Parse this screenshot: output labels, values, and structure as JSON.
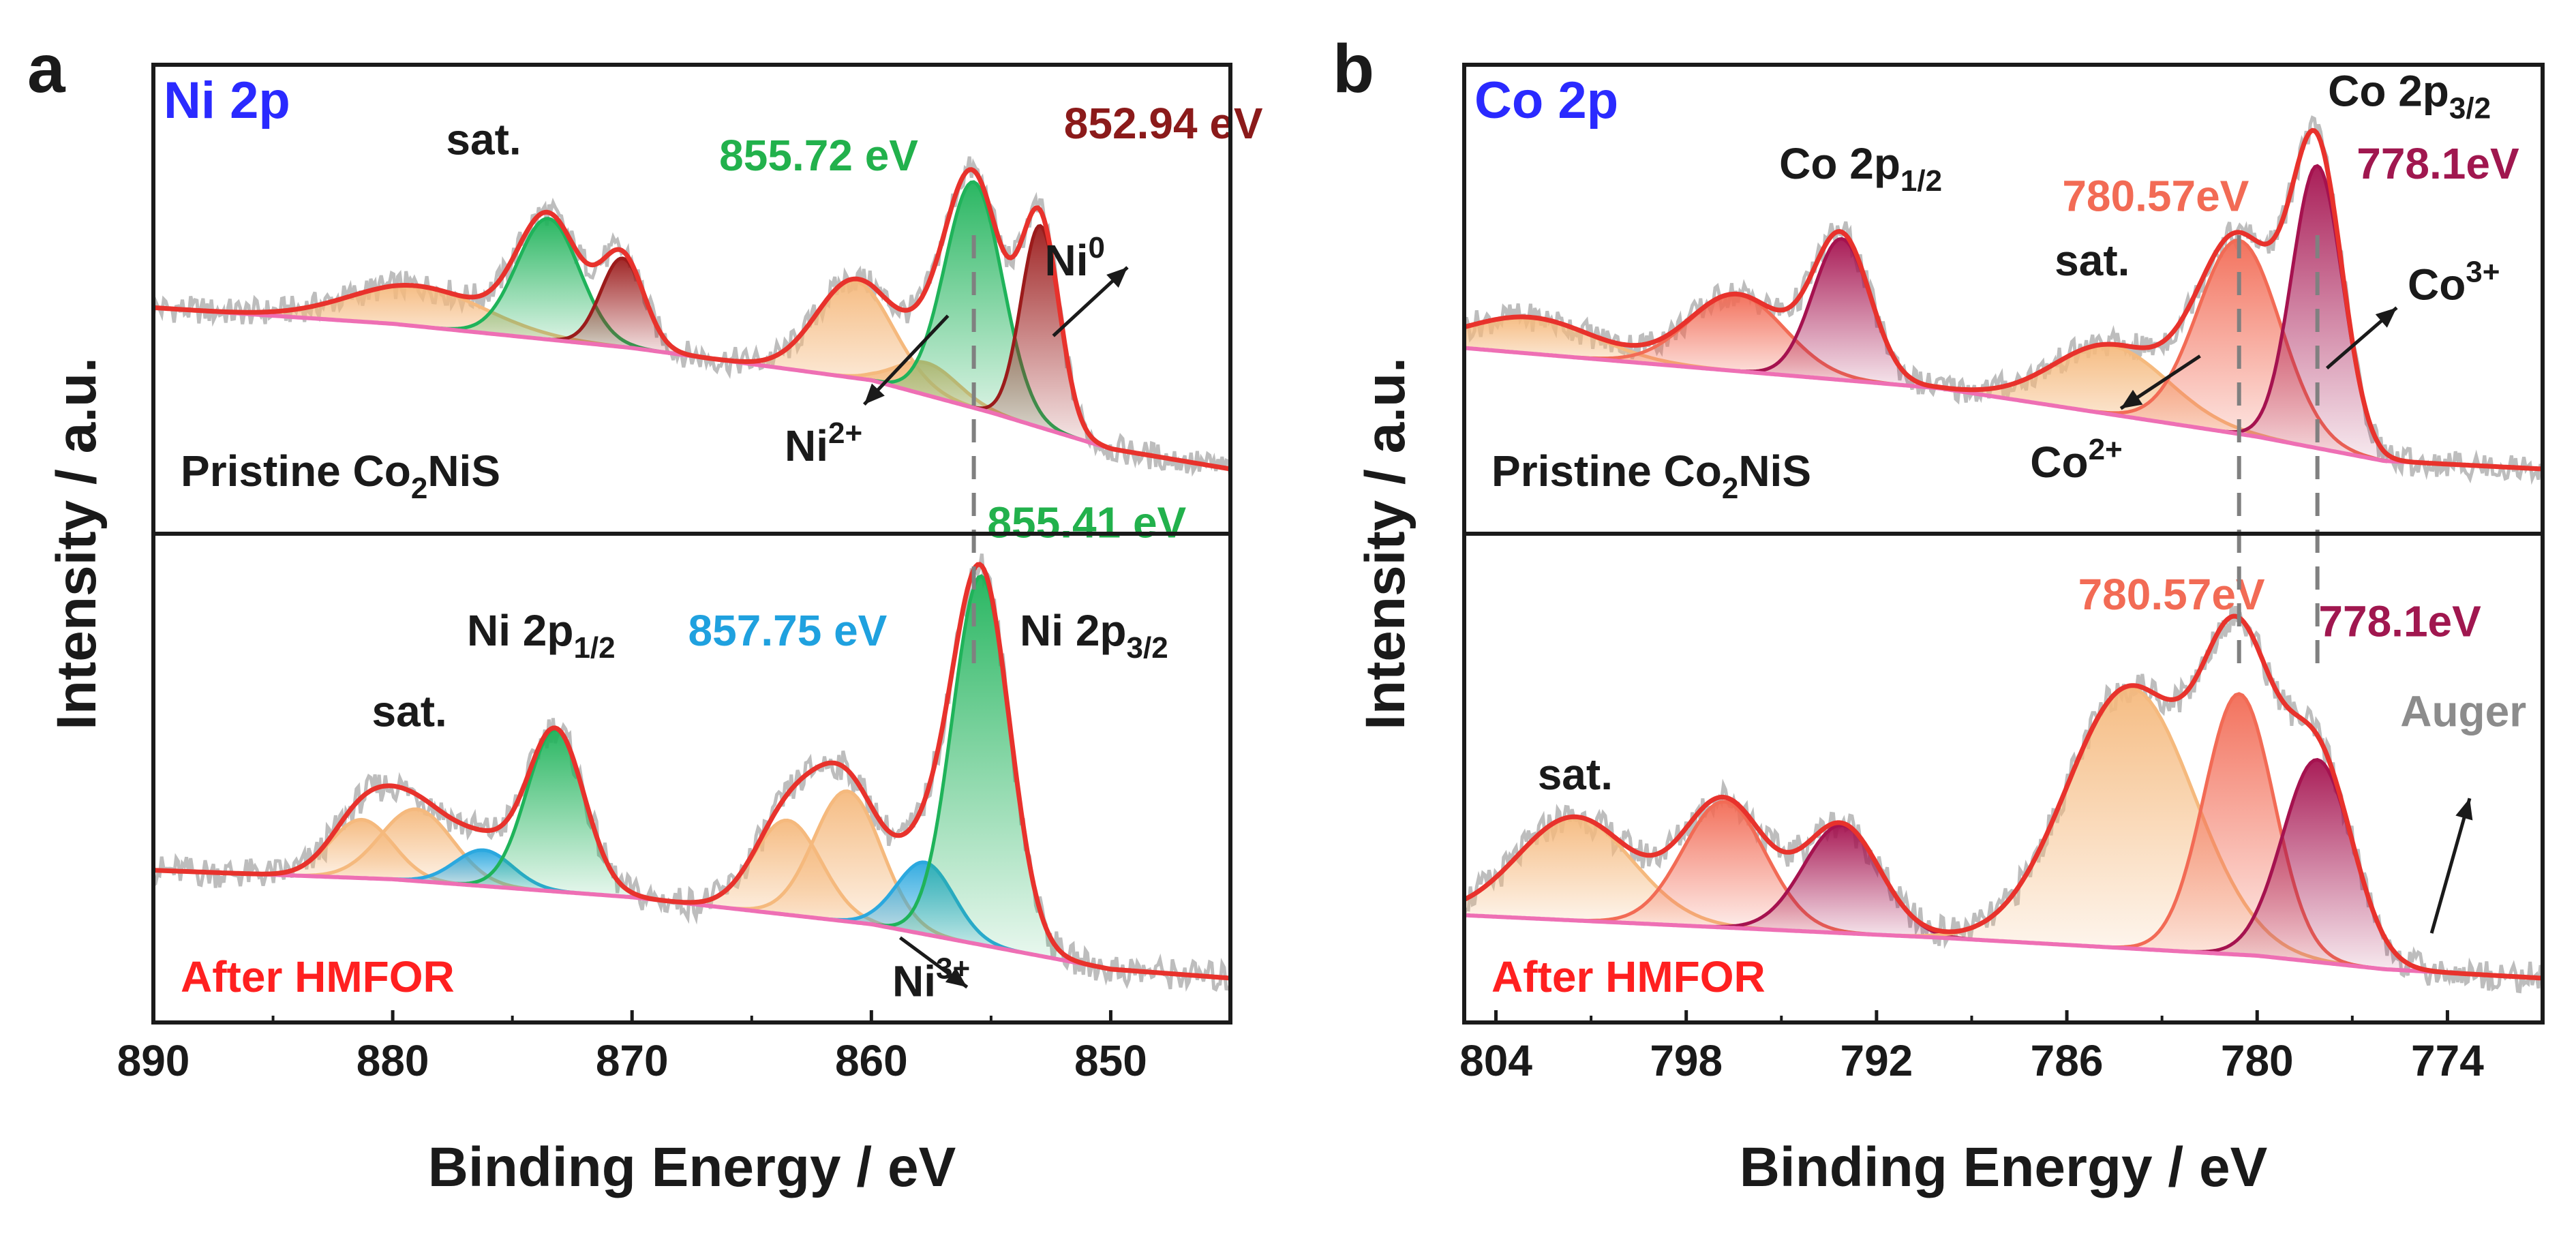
{
  "colors": {
    "raw": "#bdbdbd",
    "envelope": "#e8322c",
    "background": "#ee6fb4",
    "green": "#1fb35a",
    "darkred": "#9b1b1b",
    "blue": "#2ba8df",
    "light_orange": "#f5b97d",
    "salmon": "#f26b55",
    "crimson": "#a5124f",
    "gray_text": "#8c8c8c",
    "green_text": "#22b14c",
    "blue_text": "#1fa1df",
    "darkred_text": "#8b1a1a",
    "salmon_text": "#f26b55",
    "crimson_text": "#a0174f",
    "title_blue": "#2a2aff",
    "red_text": "#ff2020"
  },
  "chart_data": [
    {
      "type": "line",
      "panel_label": "a",
      "title": "Ni 2p",
      "xlabel": "Binding Energy / eV",
      "ylabel": "Intensity / a.u.",
      "xlim": [
        890,
        845
      ],
      "xticks": [
        890,
        880,
        870,
        860,
        850
      ],
      "xtick_labels": [
        "890",
        "880",
        "870",
        "860",
        "850"
      ],
      "subplots": [
        {
          "name": "Pristine Co2NiS",
          "label_main": "Pristine Co",
          "label_sub": "2",
          "label_tail": "NiS",
          "background": {
            "x": [
              890,
              880,
              870,
              860,
              855,
              850,
              845
            ],
            "y": [
              0.4,
              0.36,
              0.3,
              0.22,
              0.14,
              0.05,
              0.0
            ]
          },
          "peaks": [
            {
              "name": "sat.",
              "center": 879.0,
              "height": 0.1,
              "width": 2.8,
              "color": "light_orange"
            },
            {
              "name": "Ni2+ 2p1/2",
              "center": 873.5,
              "height": 0.3,
              "width": 1.3,
              "color": "green"
            },
            {
              "name": "Ni0 2p1/2",
              "center": 870.4,
              "height": 0.22,
              "width": 0.9,
              "color": "darkred"
            },
            {
              "name": "sat.",
              "center": 860.7,
              "height": 0.24,
              "width": 1.6,
              "color": "light_orange"
            },
            {
              "name": "Ni2+ sat",
              "center": 857.7,
              "height": 0.08,
              "width": 1.3,
              "color": "light_orange"
            },
            {
              "name": "Ni2+ 2p3/2",
              "center": 855.72,
              "height": 0.56,
              "width": 1.2,
              "color": "green"
            },
            {
              "name": "Ni0 2p3/2",
              "center": 852.94,
              "height": 0.5,
              "width": 0.8,
              "color": "darkred"
            }
          ],
          "annotations": [
            {
              "text": "sat.",
              "x": 876.2,
              "y": 0.78,
              "color": "#1a1a1a"
            },
            {
              "text": "855.72 eV",
              "x": 862.2,
              "y": 0.74,
              "color": "green_text"
            },
            {
              "text": "852.94 eV",
              "x": 847.8,
              "y": 0.82,
              "color": "darkred_text"
            },
            {
              "text": "Ni",
              "sup": "0",
              "x": 851.5,
              "y": 0.48,
              "color": "#1a1a1a"
            },
            {
              "text": "Ni",
              "sup": "2+",
              "x": 862.0,
              "y": 0.02,
              "color": "#1a1a1a"
            }
          ],
          "arrows": [
            {
              "x1": 852.4,
              "y1": 0.33,
              "x2": 849.3,
              "y2": 0.5
            },
            {
              "x1": 856.8,
              "y1": 0.38,
              "x2": 860.3,
              "y2": 0.16
            }
          ]
        },
        {
          "name": "After HMFOR",
          "label_main": "After HMFOR",
          "background": {
            "x": [
              890,
              880,
              870,
              860,
              855,
              850,
              845
            ],
            "y": [
              0.24,
              0.22,
              0.18,
              0.12,
              0.07,
              0.02,
              0.0
            ]
          },
          "peaks": [
            {
              "name": "sat.",
              "center": 881.3,
              "height": 0.13,
              "width": 1.3,
              "color": "light_orange"
            },
            {
              "name": "sat.",
              "center": 879.0,
              "height": 0.16,
              "width": 1.5,
              "color": "light_orange"
            },
            {
              "name": "Ni3+ 2p1/2",
              "center": 876.2,
              "height": 0.08,
              "width": 1.2,
              "color": "blue"
            },
            {
              "name": "Ni2+ 2p1/2",
              "center": 873.2,
              "height": 0.36,
              "width": 1.2,
              "color": "green"
            },
            {
              "name": "sat.",
              "center": 863.5,
              "height": 0.21,
              "width": 1.4,
              "color": "light_orange"
            },
            {
              "name": "sat.",
              "center": 861.0,
              "height": 0.29,
              "width": 1.4,
              "color": "light_orange"
            },
            {
              "name": "Ni3+ 2p3/2",
              "center": 857.75,
              "height": 0.16,
              "width": 1.2,
              "color": "blue"
            },
            {
              "name": "Ni2+ 2p3/2",
              "center": 855.41,
              "height": 0.82,
              "width": 1.2,
              "color": "green"
            }
          ],
          "annotations": [
            {
              "text": "sat.",
              "x": 879.3,
              "y": 0.56,
              "color": "#1a1a1a"
            },
            {
              "text": "Ni 2p",
              "sub": "1/2",
              "x": 873.8,
              "y": 0.74,
              "color": "#1a1a1a"
            },
            {
              "text": "857.75 eV",
              "x": 863.5,
              "y": 0.74,
              "color": "blue_text"
            },
            {
              "text": "855.41 eV",
              "x": 851.0,
              "y": 0.98,
              "color": "green_text"
            },
            {
              "text": "Ni 2p",
              "sub": "3/2",
              "x": 850.7,
              "y": 0.74,
              "color": "#1a1a1a"
            },
            {
              "text": "Ni",
              "sup": "3+",
              "x": 857.5,
              "y": -0.04,
              "color": "#1a1a1a"
            }
          ],
          "arrows": [
            {
              "x1": 858.8,
              "y1": 0.09,
              "x2": 856.0,
              "y2": -0.02
            }
          ]
        }
      ],
      "dashed_lines": [
        855.72
      ]
    },
    {
      "type": "line",
      "panel_label": "b",
      "title": "Co 2p",
      "xlabel": "Binding Energy / eV",
      "ylabel": "Intensity / a.u.",
      "xlim": [
        805,
        771
      ],
      "xticks": [
        804,
        798,
        792,
        786,
        780,
        774
      ],
      "xtick_labels": [
        "804",
        "798",
        "792",
        "786",
        "780",
        "774"
      ],
      "subplots": [
        {
          "name": "Pristine Co2NiS",
          "label_main": "Pristine Co",
          "label_sub": "2",
          "label_tail": "NiS",
          "background": {
            "x": [
              805,
              796,
              790,
              785,
              780,
              776,
              771
            ],
            "y": [
              0.3,
              0.24,
              0.2,
              0.14,
              0.08,
              0.02,
              0.0
            ]
          },
          "peaks": [
            {
              "name": "sat.",
              "center": 802.9,
              "height": 0.09,
              "width": 2.0,
              "color": "light_orange"
            },
            {
              "name": "Co2+ 2p1/2",
              "center": 796.4,
              "height": 0.19,
              "width": 1.5,
              "color": "salmon"
            },
            {
              "name": "Co3+ 2p1/2",
              "center": 793.1,
              "height": 0.35,
              "width": 0.9,
              "color": "crimson"
            },
            {
              "name": "sat.",
              "center": 784.6,
              "height": 0.17,
              "width": 1.8,
              "color": "light_orange"
            },
            {
              "name": "Co2+ 2p3/2",
              "center": 780.57,
              "height": 0.48,
              "width": 1.3,
              "color": "salmon"
            },
            {
              "name": "Co3+ 2p3/2",
              "center": 778.1,
              "height": 0.7,
              "width": 0.8,
              "color": "crimson"
            }
          ],
          "annotations": [
            {
              "text": "Co 2p",
              "sub": "1/2",
              "x": 792.5,
              "y": 0.72,
              "color": "#1a1a1a"
            },
            {
              "text": "780.57eV",
              "x": 783.2,
              "y": 0.64,
              "color": "salmon_text"
            },
            {
              "text": "Co 2p",
              "sub": "3/2",
              "x": 775.2,
              "y": 0.9,
              "color": "#1a1a1a"
            },
            {
              "text": "778.1eV",
              "x": 774.3,
              "y": 0.72,
              "color": "crimson_text"
            },
            {
              "text": "sat.",
              "x": 785.2,
              "y": 0.48,
              "color": "#1a1a1a"
            },
            {
              "text": "Co",
              "sup": "3+",
              "x": 773.8,
              "y": 0.42,
              "color": "#1a1a1a"
            },
            {
              "text": "Co",
              "sup": "2+",
              "x": 785.7,
              "y": -0.02,
              "color": "#1a1a1a"
            }
          ],
          "arrows": [
            {
              "x1": 777.8,
              "y1": 0.25,
              "x2": 775.6,
              "y2": 0.4
            },
            {
              "x1": 781.8,
              "y1": 0.28,
              "x2": 784.3,
              "y2": 0.15
            }
          ]
        },
        {
          "name": "After HMFOR",
          "label_main": "After HMFOR",
          "background": {
            "x": [
              805,
              796,
              790,
              785,
              780,
              776,
              771
            ],
            "y": [
              0.14,
              0.11,
              0.09,
              0.07,
              0.05,
              0.02,
              0.0
            ]
          },
          "peaks": [
            {
              "name": "sat.",
              "center": 801.5,
              "height": 0.23,
              "width": 1.8,
              "color": "light_orange"
            },
            {
              "name": "Co2+ 2p1/2",
              "center": 796.8,
              "height": 0.28,
              "width": 1.3,
              "color": "salmon"
            },
            {
              "name": "Co3+ 2p1/2",
              "center": 793.1,
              "height": 0.24,
              "width": 1.2,
              "color": "crimson"
            },
            {
              "name": "sat.",
              "center": 784.0,
              "height": 0.58,
              "width": 2.0,
              "color": "light_orange"
            },
            {
              "name": "Co2+ 2p3/2",
              "center": 780.57,
              "height": 0.58,
              "width": 1.1,
              "color": "salmon"
            },
            {
              "name": "Co3+ 2p3/2",
              "center": 778.1,
              "height": 0.45,
              "width": 1.1,
              "color": "crimson"
            }
          ],
          "annotations": [
            {
              "text": "sat.",
              "x": 801.5,
              "y": 0.42,
              "color": "#1a1a1a"
            },
            {
              "text": "780.57eV",
              "x": 782.7,
              "y": 0.82,
              "color": "salmon_text"
            },
            {
              "text": "778.1eV",
              "x": 775.5,
              "y": 0.76,
              "color": "crimson_text"
            },
            {
              "text": "Auger",
              "x": 773.5,
              "y": 0.56,
              "color": "gray_text"
            }
          ],
          "arrows": [
            {
              "x1": 774.5,
              "y1": 0.1,
              "x2": 773.3,
              "y2": 0.4,
              "color": "#1a1a1a"
            }
          ]
        }
      ],
      "dashed_lines": [
        780.57,
        778.1
      ]
    }
  ]
}
